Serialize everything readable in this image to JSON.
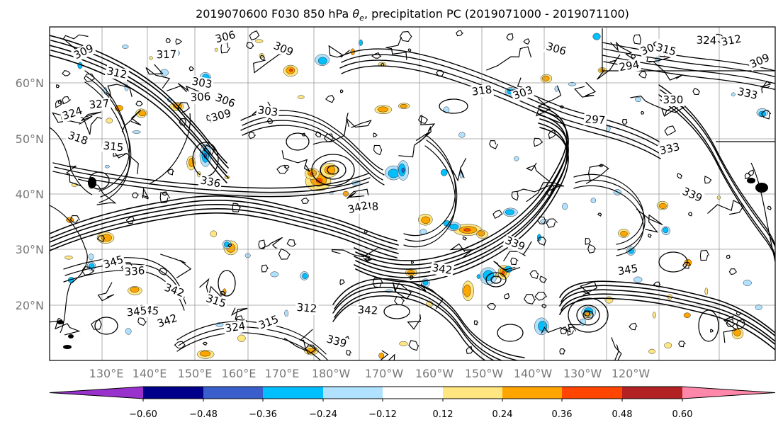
{
  "title": "2019070600 F030 850 hPa θe, precipitation PC (2019071000 - 2019071100)",
  "lat_labels": [
    "60°N",
    "50°N",
    "40°N",
    "30°N",
    "20°N"
  ],
  "lon_labels": [
    "130°E",
    "140°E",
    "150°E",
    "160°E",
    "170°E",
    "180°W",
    "170°W",
    "160°W",
    "150°W",
    "140°W",
    "130°W",
    "120°W"
  ],
  "colorbar": {
    "ticks": [
      "−0.60",
      "−0.48",
      "−0.36",
      "−0.24",
      "−0.12",
      "0.12",
      "0.24",
      "0.36",
      "0.48",
      "0.60"
    ],
    "colors": [
      "#9932cc",
      "#00008b",
      "#3a5fcd",
      "#00bfff",
      "#b0e2ff",
      "#ffffff",
      "#ffe680",
      "#ffa500",
      "#ff4500",
      "#b22222",
      "#ff88aa"
    ]
  },
  "contour_labels": [
    "309",
    "312",
    "317",
    "306",
    "309",
    "303",
    "306",
    "309",
    "306",
    "303",
    "327",
    "324",
    "318",
    "315",
    "318",
    "303",
    "306",
    "297",
    "294",
    "309",
    "315",
    "324",
    "312",
    "309",
    "333",
    "330",
    "333",
    "339",
    "336",
    "348",
    "342",
    "339",
    "342",
    "336",
    "345",
    "342",
    "345",
    "345",
    "342",
    "315",
    "312",
    "324",
    "315",
    "339",
    "342",
    "345"
  ],
  "map": {
    "lat_range": [
      10,
      70
    ],
    "lon_range": [
      120,
      245
    ],
    "land_color": "#000000",
    "shading_positive": [
      "#ffe680",
      "#ffa500",
      "#ff4500"
    ],
    "shading_negative": [
      "#b0e2ff",
      "#00bfff",
      "#3a5fcd"
    ]
  }
}
